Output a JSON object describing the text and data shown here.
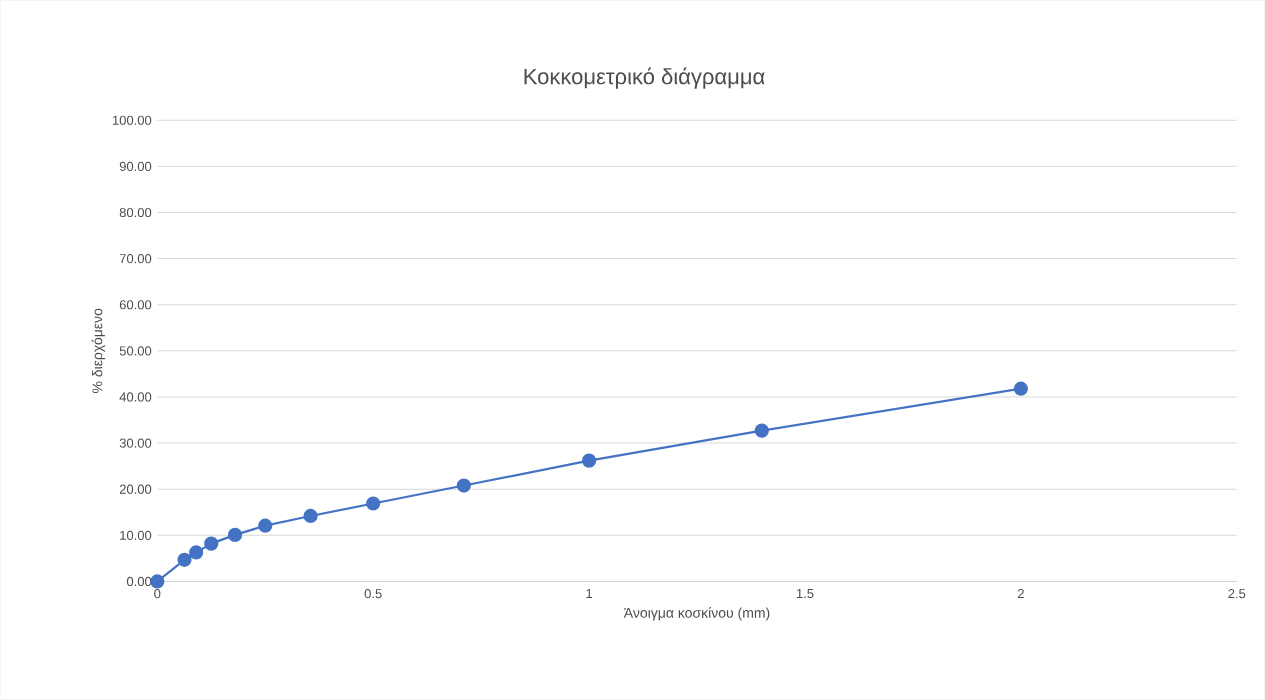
{
  "chart_data": {
    "type": "line",
    "title": "Κοκκομετρικό διάγραμμα",
    "xlabel": "Άνοιγμα κοσκίνου (mm)",
    "ylabel": "% διερχόμενο",
    "x": [
      0,
      0.063,
      0.09,
      0.125,
      0.18,
      0.25,
      0.355,
      0.5,
      0.71,
      1,
      1.4,
      2
    ],
    "series": [
      {
        "color": "#4472c4",
        "values": [
          0,
          4.7,
          6.3,
          8.2,
          10.1,
          12.1,
          14.2,
          16.9,
          20.8,
          26.2,
          32.7,
          41.8
        ]
      }
    ],
    "xlim": [
      0,
      2.5
    ],
    "xticks": [
      0,
      0.5,
      1,
      1.5,
      2,
      2.5
    ],
    "ylim": [
      0,
      100
    ],
    "yticks": [
      {
        "value": 0,
        "label": "0.00"
      },
      {
        "value": 10,
        "label": "10.00"
      },
      {
        "value": 20,
        "label": "20.00"
      },
      {
        "value": 30,
        "label": "30.00"
      },
      {
        "value": 40,
        "label": "40.00"
      },
      {
        "value": 50,
        "label": "50.00"
      },
      {
        "value": 60,
        "label": "60.00"
      },
      {
        "value": 70,
        "label": "70.00"
      },
      {
        "value": 80,
        "label": "80.00"
      },
      {
        "value": 90,
        "label": "90.00"
      },
      {
        "value": 100,
        "label": "100.00"
      }
    ],
    "grid": "y",
    "marker": "circle",
    "line_style": "solid"
  }
}
